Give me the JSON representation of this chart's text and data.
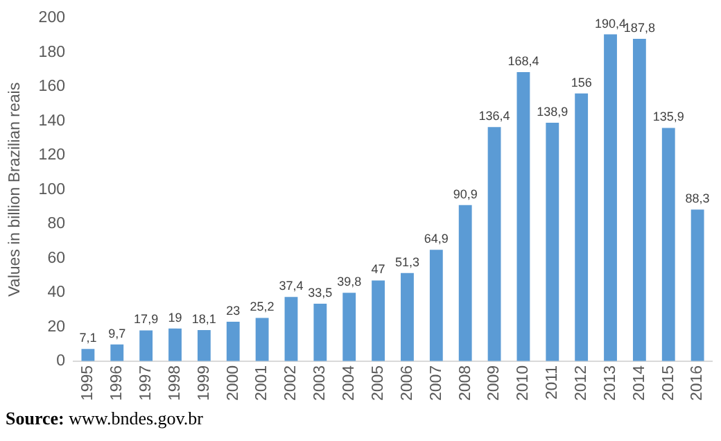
{
  "chart_data": {
    "type": "bar",
    "ylabel": "Values in billion Brazilian reais",
    "categories": [
      "1995",
      "1996",
      "1997",
      "1998",
      "1999",
      "2000",
      "2001",
      "2002",
      "2003",
      "2004",
      "2005",
      "2006",
      "2007",
      "2008",
      "2009",
      "2010",
      "2011",
      "2012",
      "2013",
      "2014",
      "2015",
      "2016"
    ],
    "values": [
      7.1,
      9.7,
      17.9,
      19,
      18.1,
      23,
      25.2,
      37.4,
      33.5,
      39.8,
      47,
      51.3,
      64.9,
      90.9,
      136.4,
      168.4,
      138.9,
      156,
      190.4,
      187.8,
      135.9,
      88.3
    ],
    "value_labels": [
      "7,1",
      "9,7",
      "17,9",
      "19",
      "18,1",
      "23",
      "25,2",
      "37,4",
      "33,5",
      "39,8",
      "47",
      "51,3",
      "64,9",
      "90,9",
      "136,4",
      "168,4",
      "138,9",
      "156",
      "190,4",
      "187,8",
      "135,9",
      "88,3"
    ],
    "color": "#5b9bd5",
    "ylim": [
      0,
      200
    ],
    "yticks": [
      0,
      20,
      40,
      60,
      80,
      100,
      120,
      140,
      160,
      180,
      200
    ],
    "grid": false,
    "legend": false,
    "annotations": [
      "Source: www.bndes.gov.br"
    ]
  }
}
